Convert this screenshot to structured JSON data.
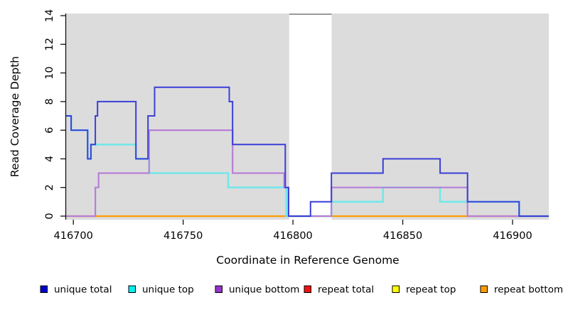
{
  "chart_data": {
    "type": "step-line",
    "title": "",
    "xlabel": "Coordinate in Reference Genome",
    "ylabel": "Read Coverage Depth",
    "xlim": [
      416696.7,
      416916.5
    ],
    "ylim": [
      -0.25,
      14.15
    ],
    "x_ticks": [
      416700,
      416750,
      416800,
      416850,
      416900
    ],
    "y_ticks": [
      0,
      2,
      4,
      6,
      8,
      10,
      12,
      14
    ],
    "grid": false,
    "panel_bg": "#dcdcdc",
    "masked_region": {
      "x_start": 416798.3,
      "x_end": 416817.6,
      "color": "#ffffff",
      "top_border_color": "#9a9a9a",
      "note": "white vertical band spanning full panel height"
    },
    "series": [
      {
        "id": "repeat-total",
        "name": "repeat total",
        "color": "#dd2222",
        "steps": [
          [
            416696.7,
            0
          ]
        ],
        "x_end": 416916.5
      },
      {
        "id": "repeat-top",
        "name": "repeat top",
        "color": "#ffff00",
        "steps": [
          [
            416696.7,
            0
          ]
        ],
        "x_end": 416916.5
      },
      {
        "id": "repeat-bottom",
        "name": "repeat bottom",
        "color": "#ff9c00",
        "steps": [
          [
            416696.7,
            0
          ]
        ],
        "x_end": 416916.5
      },
      {
        "id": "unique-top",
        "name": "unique top",
        "color": "#74e7ea",
        "steps": [
          [
            416696.7,
            7
          ],
          [
            416699,
            6
          ],
          [
            416706.5,
            4
          ],
          [
            416708,
            5
          ],
          [
            416728.5,
            4
          ],
          [
            416734.5,
            3
          ],
          [
            416770.5,
            2
          ],
          [
            416797,
            0
          ],
          [
            416817.5,
            1
          ],
          [
            416841,
            2
          ],
          [
            416867,
            1
          ],
          [
            416903,
            0
          ]
        ],
        "x_end": 416916.5
      },
      {
        "id": "unique-bottom",
        "name": "unique bottom",
        "color": "#b77fd8",
        "steps": [
          [
            416696.7,
            0
          ],
          [
            416710,
            2
          ],
          [
            416711.5,
            3
          ],
          [
            416734.5,
            6
          ],
          [
            416772.5,
            3
          ],
          [
            416796,
            2
          ],
          [
            416798,
            0
          ],
          [
            416817.5,
            2
          ],
          [
            416879.5,
            0
          ]
        ],
        "x_end": 416916.5
      },
      {
        "id": "unique-total",
        "name": "unique total",
        "color": "#3a3fd8",
        "steps": [
          [
            416696.7,
            7
          ],
          [
            416699,
            6
          ],
          [
            416706.5,
            4
          ],
          [
            416708,
            5
          ],
          [
            416710,
            7
          ],
          [
            416711,
            8
          ],
          [
            416728.5,
            4
          ],
          [
            416734,
            7
          ],
          [
            416737,
            9
          ],
          [
            416771,
            8
          ],
          [
            416772.5,
            5
          ],
          [
            416796.5,
            2
          ],
          [
            416798,
            0
          ],
          [
            416808,
            1
          ],
          [
            416817.5,
            3
          ],
          [
            416841,
            4
          ],
          [
            416867,
            3
          ],
          [
            416879.5,
            1
          ],
          [
            416903,
            0
          ]
        ],
        "x_end": 416916.5
      }
    ],
    "legend": [
      {
        "label": "unique total",
        "color": "#0000cc"
      },
      {
        "label": "unique top",
        "color": "#00efef"
      },
      {
        "label": "unique bottom",
        "color": "#9933cc"
      },
      {
        "label": "repeat total",
        "color": "#ee1111"
      },
      {
        "label": "repeat top",
        "color": "#ffff00"
      },
      {
        "label": "repeat bottom",
        "color": "#ff9d00"
      }
    ],
    "legend_position": "bottom"
  }
}
